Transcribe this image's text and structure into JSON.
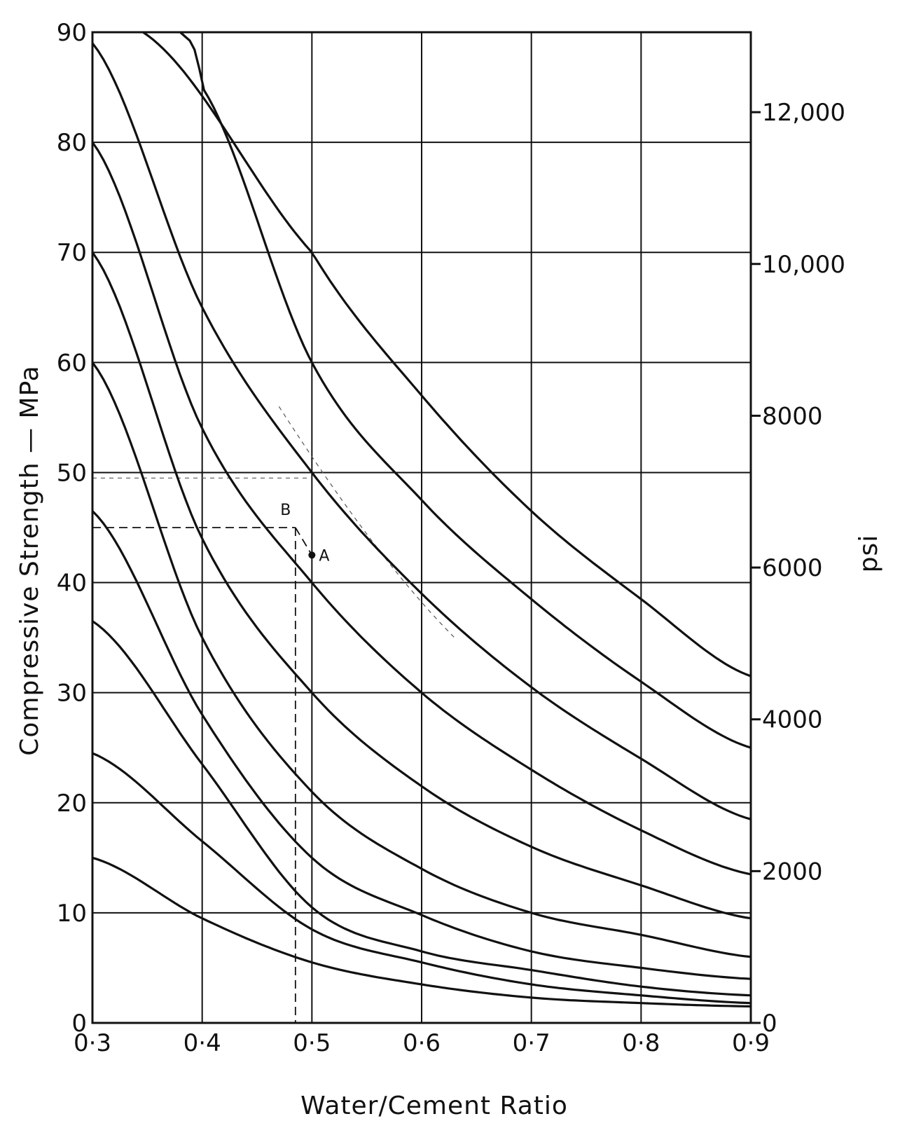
{
  "chart_data": {
    "type": "line",
    "xlabel": "Water/Cement Ratio",
    "ylabel": "Compressive Strength — MPa",
    "y2label": "psi",
    "xlim": [
      0.3,
      0.9
    ],
    "ylim": [
      0,
      90
    ],
    "x_ticks": [
      {
        "value": 0.3,
        "label": "0·3"
      },
      {
        "value": 0.4,
        "label": "0·4"
      },
      {
        "value": 0.5,
        "label": "0·5"
      },
      {
        "value": 0.6,
        "label": "0·6"
      },
      {
        "value": 0.7,
        "label": "0·7"
      },
      {
        "value": 0.8,
        "label": "0·8"
      },
      {
        "value": 0.9,
        "label": "0·9"
      }
    ],
    "y_ticks": [
      {
        "value": 0,
        "label": "0"
      },
      {
        "value": 10,
        "label": "10"
      },
      {
        "value": 20,
        "label": "20"
      },
      {
        "value": 30,
        "label": "30"
      },
      {
        "value": 40,
        "label": "40"
      },
      {
        "value": 50,
        "label": "50"
      },
      {
        "value": 60,
        "label": "60"
      },
      {
        "value": 70,
        "label": "70"
      },
      {
        "value": 80,
        "label": "80"
      },
      {
        "value": 90,
        "label": "90"
      }
    ],
    "y2_ticks": [
      {
        "value": 0,
        "label": "0"
      },
      {
        "value": 2000,
        "label": "2000"
      },
      {
        "value": 4000,
        "label": "4000"
      },
      {
        "value": 6000,
        "label": "6000"
      },
      {
        "value": 8000,
        "label": "8000"
      },
      {
        "value": 10000,
        "label": "10,000"
      },
      {
        "value": 12000,
        "label": "12,000"
      }
    ],
    "y2_per_y": 145.0377,
    "x": [
      0.3,
      0.4,
      0.5,
      0.6,
      0.7,
      0.8,
      0.9
    ],
    "series": [
      {
        "values": [
          null,
          null,
          70,
          57,
          46.5,
          38.5,
          31.5
        ]
      },
      {
        "values": [
          null,
          85,
          60,
          47.5,
          38.5,
          31,
          25
        ]
      },
      {
        "values": [
          89,
          65,
          50,
          39,
          30.5,
          24,
          18.5
        ]
      },
      {
        "values": [
          80,
          54,
          40,
          30,
          23,
          17.5,
          13.5
        ]
      },
      {
        "values": [
          70,
          44,
          30,
          21.5,
          16,
          12.5,
          9.5
        ]
      },
      {
        "values": [
          60,
          35,
          21,
          14,
          10,
          8,
          6
        ]
      },
      {
        "values": [
          46.5,
          28,
          15,
          9.8,
          6.5,
          5,
          4
        ]
      },
      {
        "values": [
          36.5,
          23.5,
          10.5,
          6.5,
          4.8,
          3.3,
          2.5
        ]
      },
      {
        "values": [
          24.5,
          16.5,
          8.5,
          5.5,
          3.5,
          2.5,
          1.8
        ]
      },
      {
        "values": [
          15,
          9.5,
          5.5,
          3.5,
          2.3,
          1.8,
          1.5
        ]
      }
    ],
    "annotations": [
      {
        "label": "A",
        "x": 0.5,
        "y": 42.5
      },
      {
        "label": "B",
        "x": 0.485,
        "y": 45
      }
    ],
    "grid": true
  }
}
